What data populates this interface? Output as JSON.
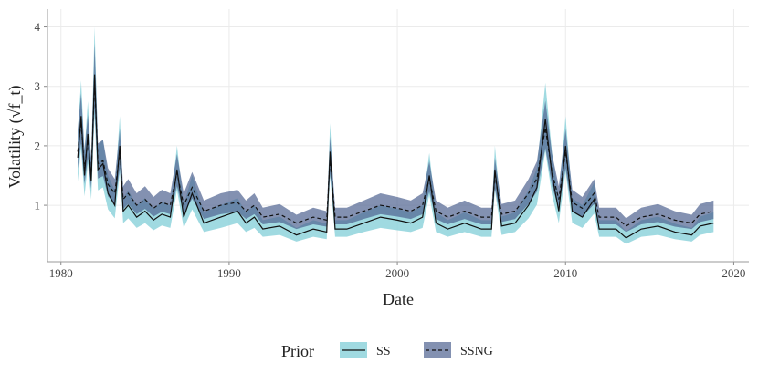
{
  "chart_data": {
    "type": "band-line",
    "x_label": "Date",
    "y_label": "Volatility (√f_t)",
    "legend_title": "Prior",
    "xlim": [
      1979.2,
      2020.9
    ],
    "xticks": [
      1980,
      1990,
      2000,
      2010,
      2020
    ],
    "ylim": [
      0.05,
      4.3
    ],
    "yticks": [
      1,
      2,
      3,
      4
    ],
    "grid": true,
    "legend_position": "bottom",
    "x": [
      1981.0,
      1981.2,
      1981.4,
      1981.6,
      1981.8,
      1982.0,
      1982.2,
      1982.5,
      1982.8,
      1983.2,
      1983.5,
      1983.7,
      1984.0,
      1984.5,
      1985.0,
      1985.5,
      1986.0,
      1986.5,
      1986.9,
      1987.3,
      1987.8,
      1988.5,
      1989.5,
      1990.5,
      1991.0,
      1991.5,
      1992.0,
      1993.0,
      1994.0,
      1995.0,
      1995.8,
      1996.0,
      1996.3,
      1997.0,
      1998.0,
      1999.0,
      2000.0,
      2000.8,
      2001.5,
      2001.9,
      2002.3,
      2003.0,
      2004.0,
      2005.0,
      2005.6,
      2005.8,
      2006.2,
      2007.0,
      2007.8,
      2008.3,
      2008.8,
      2009.2,
      2009.6,
      2010.0,
      2010.4,
      2011.0,
      2011.7,
      2012.0,
      2013.0,
      2013.6,
      2014.5,
      2015.5,
      2016.5,
      2017.5,
      2018.0,
      2018.8
    ],
    "series": [
      {
        "name": "SS",
        "color": "#8fd3dc",
        "line_color": "#111111",
        "dash": false,
        "values": [
          1.8,
          2.5,
          1.5,
          2.2,
          1.4,
          3.2,
          1.6,
          1.7,
          1.2,
          1.0,
          2.0,
          0.9,
          1.0,
          0.8,
          0.9,
          0.75,
          0.85,
          0.8,
          1.6,
          0.8,
          1.2,
          0.7,
          0.8,
          0.9,
          0.7,
          0.8,
          0.6,
          0.65,
          0.5,
          0.6,
          0.55,
          1.9,
          0.6,
          0.6,
          0.7,
          0.8,
          0.75,
          0.7,
          0.8,
          1.5,
          0.7,
          0.6,
          0.7,
          0.6,
          0.6,
          1.6,
          0.65,
          0.7,
          1.0,
          1.3,
          2.45,
          1.5,
          0.9,
          2.0,
          0.9,
          0.8,
          1.1,
          0.6,
          0.6,
          0.45,
          0.6,
          0.65,
          0.55,
          0.5,
          0.65,
          0.7
        ],
        "lower": [
          1.4,
          1.95,
          1.15,
          1.7,
          1.1,
          2.5,
          1.25,
          1.3,
          0.93,
          0.78,
          1.55,
          0.7,
          0.78,
          0.62,
          0.7,
          0.58,
          0.66,
          0.62,
          1.25,
          0.62,
          0.93,
          0.55,
          0.62,
          0.7,
          0.55,
          0.62,
          0.47,
          0.5,
          0.39,
          0.47,
          0.43,
          1.48,
          0.47,
          0.47,
          0.55,
          0.62,
          0.58,
          0.55,
          0.62,
          1.17,
          0.55,
          0.47,
          0.55,
          0.47,
          0.47,
          1.25,
          0.5,
          0.55,
          0.78,
          1.01,
          1.91,
          1.17,
          0.7,
          1.56,
          0.7,
          0.62,
          0.86,
          0.47,
          0.47,
          0.35,
          0.47,
          0.5,
          0.43,
          0.39,
          0.5,
          0.55
        ],
        "upper": [
          2.25,
          3.1,
          1.9,
          2.75,
          1.75,
          4.0,
          2.0,
          2.1,
          1.5,
          1.25,
          2.5,
          1.12,
          1.25,
          1.0,
          1.12,
          0.94,
          1.06,
          1.0,
          2.0,
          1.0,
          1.5,
          0.88,
          1.0,
          1.12,
          0.88,
          1.0,
          0.75,
          0.81,
          0.62,
          0.75,
          0.69,
          2.38,
          0.75,
          0.75,
          0.88,
          1.0,
          0.94,
          0.88,
          1.0,
          1.88,
          0.88,
          0.75,
          0.88,
          0.75,
          0.75,
          2.0,
          0.81,
          0.88,
          1.25,
          1.63,
          3.06,
          1.88,
          1.12,
          2.5,
          1.12,
          1.0,
          1.38,
          0.75,
          0.75,
          0.56,
          0.75,
          0.81,
          0.69,
          0.62,
          0.81,
          0.88
        ]
      },
      {
        "name": "SSNG",
        "color": "#4e6290",
        "line_color": "#111111",
        "dash": true,
        "values": [
          1.9,
          2.4,
          1.6,
          2.1,
          1.5,
          3.1,
          1.7,
          1.75,
          1.35,
          1.2,
          1.9,
          1.1,
          1.2,
          1.0,
          1.1,
          0.95,
          1.05,
          1.0,
          1.55,
          1.0,
          1.3,
          0.9,
          1.0,
          1.05,
          0.9,
          1.0,
          0.8,
          0.85,
          0.7,
          0.8,
          0.75,
          1.8,
          0.8,
          0.8,
          0.9,
          1.0,
          0.95,
          0.9,
          1.0,
          1.45,
          0.9,
          0.8,
          0.9,
          0.8,
          0.8,
          1.5,
          0.85,
          0.9,
          1.2,
          1.45,
          2.3,
          1.55,
          1.1,
          1.9,
          1.05,
          0.95,
          1.2,
          0.8,
          0.8,
          0.65,
          0.8,
          0.85,
          0.75,
          0.7,
          0.85,
          0.9
        ],
        "lower": [
          1.62,
          2.04,
          1.36,
          1.79,
          1.28,
          2.64,
          1.45,
          1.49,
          1.15,
          1.02,
          1.62,
          0.94,
          1.02,
          0.85,
          0.94,
          0.81,
          0.89,
          0.85,
          1.32,
          0.85,
          1.11,
          0.77,
          0.85,
          0.89,
          0.77,
          0.85,
          0.68,
          0.72,
          0.6,
          0.68,
          0.64,
          1.53,
          0.68,
          0.68,
          0.77,
          0.85,
          0.81,
          0.77,
          0.85,
          1.23,
          0.77,
          0.68,
          0.77,
          0.68,
          0.68,
          1.28,
          0.72,
          0.77,
          1.02,
          1.23,
          1.96,
          1.32,
          0.94,
          1.62,
          0.89,
          0.81,
          1.02,
          0.68,
          0.68,
          0.55,
          0.68,
          0.72,
          0.64,
          0.6,
          0.72,
          0.77
        ],
        "upper": [
          2.28,
          2.88,
          1.92,
          2.52,
          1.8,
          3.72,
          2.04,
          2.1,
          1.62,
          1.44,
          2.28,
          1.32,
          1.44,
          1.2,
          1.32,
          1.14,
          1.26,
          1.2,
          1.86,
          1.2,
          1.56,
          1.08,
          1.2,
          1.26,
          1.08,
          1.2,
          0.96,
          1.02,
          0.84,
          0.96,
          0.9,
          2.16,
          0.96,
          0.96,
          1.08,
          1.2,
          1.14,
          1.08,
          1.2,
          1.74,
          1.08,
          0.96,
          1.08,
          0.96,
          0.96,
          1.8,
          1.02,
          1.08,
          1.44,
          1.74,
          2.76,
          1.86,
          1.32,
          2.28,
          1.26,
          1.14,
          1.44,
          0.96,
          0.96,
          0.78,
          0.96,
          1.02,
          0.9,
          0.84,
          1.02,
          1.08
        ]
      }
    ]
  }
}
